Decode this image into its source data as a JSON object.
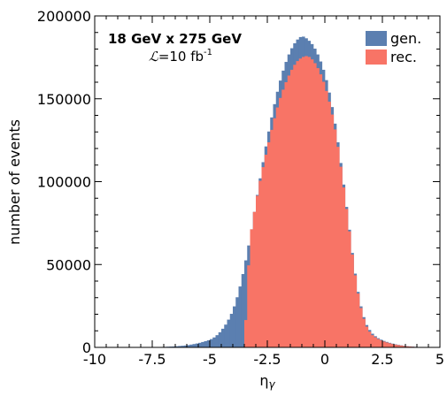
{
  "chart_data": {
    "type": "bar",
    "subtype": "overlaid-histogram",
    "xlabel": "η",
    "xlabel_sub": "γ",
    "ylabel": "number of events",
    "xlim": [
      -10,
      5
    ],
    "ylim": [
      0,
      200000
    ],
    "xticks": [
      -10,
      -7.5,
      -5,
      -2.5,
      0,
      2.5,
      5
    ],
    "xtick_labels": [
      "-10",
      "-7.5",
      "-5",
      "-2.5",
      "0",
      "2.5",
      "5"
    ],
    "yticks": [
      0,
      50000,
      100000,
      150000,
      200000
    ],
    "ytick_labels": [
      "0",
      "50000",
      "100000",
      "150000",
      "200000"
    ],
    "annotation": {
      "energy": "18 GeV x 275 GeV",
      "lumi_symbol": "ℒ",
      "lumi_text": "=10 fb",
      "lumi_exp": "-1"
    },
    "legend_position": "top-right",
    "bin_width": 0.125,
    "series": [
      {
        "name": "gen.",
        "color": "#5b7fb0",
        "x": [
          -7.5,
          -7.0,
          -6.5,
          -6.0,
          -5.5,
          -5.0,
          -4.75,
          -4.5,
          -4.25,
          -4.0,
          -3.75,
          -3.5,
          -3.25,
          -3.0,
          -2.75,
          -2.5,
          -2.25,
          -2.0,
          -1.75,
          -1.5,
          -1.25,
          -1.0,
          -0.75,
          -0.5,
          -0.25,
          0.0,
          0.25,
          0.5,
          0.75,
          1.0,
          1.25,
          1.5,
          1.75,
          2.0,
          2.25,
          2.5,
          2.75,
          3.0,
          3.5,
          4.0,
          4.5
        ],
        "values": [
          100,
          300,
          600,
          1200,
          2500,
          4500,
          6500,
          10000,
          15000,
          22000,
          33000,
          48000,
          66000,
          87000,
          107000,
          126000,
          143000,
          158000,
          170000,
          179000,
          185000,
          188000,
          186000,
          182000,
          175000,
          165000,
          150000,
          130000,
          105000,
          78000,
          50000,
          28000,
          15000,
          9000,
          6000,
          4200,
          3000,
          2000,
          800,
          250,
          50
        ]
      },
      {
        "name": "rec.",
        "color": "#f87466",
        "x": [
          -3.5,
          -3.25,
          -3.0,
          -2.75,
          -2.5,
          -2.25,
          -2.0,
          -1.75,
          -1.5,
          -1.25,
          -1.0,
          -0.75,
          -0.5,
          -0.25,
          0.0,
          0.25,
          0.5,
          0.75,
          1.0,
          1.25,
          1.5,
          1.75,
          2.0,
          2.25,
          2.5,
          2.75,
          3.0,
          3.5,
          4.0,
          4.5
        ],
        "values": [
          0,
          66000,
          87000,
          105000,
          120000,
          135000,
          148000,
          158000,
          166000,
          172000,
          175000,
          176000,
          173000,
          167000,
          158000,
          145000,
          127000,
          103000,
          77000,
          49000,
          27000,
          14000,
          8000,
          5500,
          3800,
          2700,
          1800,
          700,
          220,
          40
        ]
      }
    ]
  }
}
